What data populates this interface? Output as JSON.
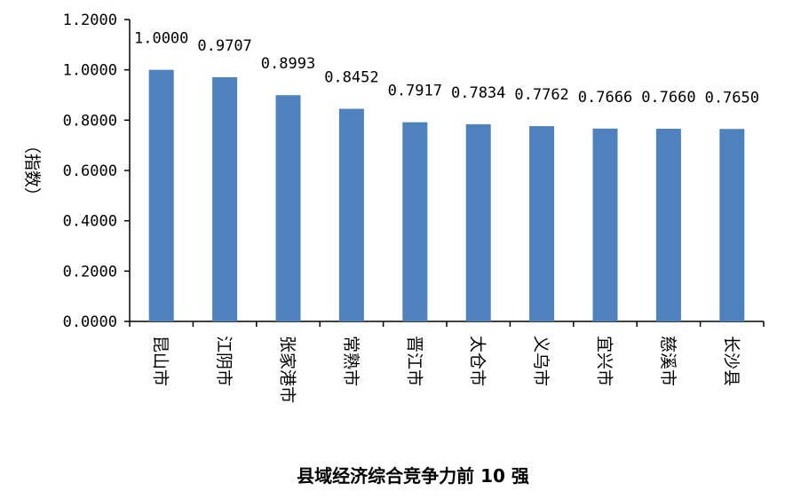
{
  "chart_data": {
    "type": "bar",
    "title": "县域经济综合竞争力前 10 强",
    "xlabel": "",
    "ylabel": "（指数）",
    "categories": [
      "昆山市",
      "江阴市",
      "张家港市",
      "常熟市",
      "晋江市",
      "太仓市",
      "义乌市",
      "宜兴市",
      "慈溪市",
      "长沙县"
    ],
    "values": [
      1.0,
      0.9707,
      0.8993,
      0.8452,
      0.7917,
      0.7834,
      0.7762,
      0.7666,
      0.766,
      0.765
    ],
    "value_labels": [
      "1.0000",
      "0.9707",
      "0.8993",
      "0.8452",
      "0.7917",
      "0.7834",
      "0.7762",
      "0.7666",
      "0.7660",
      "0.7650"
    ],
    "ylim": [
      0,
      1.2
    ],
    "yticks": [
      0,
      0.2,
      0.4,
      0.6,
      0.8,
      1.0,
      1.2
    ],
    "ytick_labels": [
      "0.0000",
      "0.2000",
      "0.4000",
      "0.6000",
      "0.8000",
      "1.0000",
      "1.2000"
    ],
    "grid": false,
    "bar_color": "#4f81bd",
    "axis_color": "#000000"
  }
}
